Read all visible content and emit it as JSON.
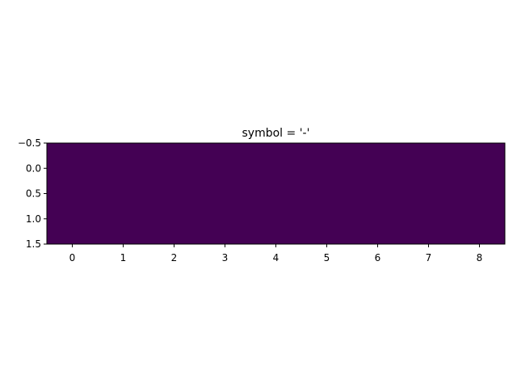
{
  "chart_data": {
    "type": "heatmap",
    "title": "symbol = '-'",
    "xlabel": "",
    "ylabel": "",
    "xlim": [
      -0.5,
      8.5
    ],
    "ylim": [
      1.5,
      -0.5
    ],
    "x_ticks": [
      "0",
      "1",
      "2",
      "3",
      "4",
      "5",
      "6",
      "7",
      "8"
    ],
    "x_tick_values": [
      0,
      1,
      2,
      3,
      4,
      5,
      6,
      7,
      8
    ],
    "y_ticks": [
      "−0.5",
      "0.0",
      "0.5",
      "1.0",
      "1.5"
    ],
    "y_tick_values": [
      -0.5,
      0.0,
      0.5,
      1.0,
      1.5
    ],
    "rows": 2,
    "columns": 9,
    "values": [
      [
        0,
        0,
        0,
        0,
        0,
        0,
        0,
        0,
        0
      ],
      [
        0,
        0,
        0,
        0,
        0,
        0,
        0,
        0,
        0
      ]
    ],
    "colormap": "viridis",
    "fill_color": "#440154",
    "grid": false
  }
}
